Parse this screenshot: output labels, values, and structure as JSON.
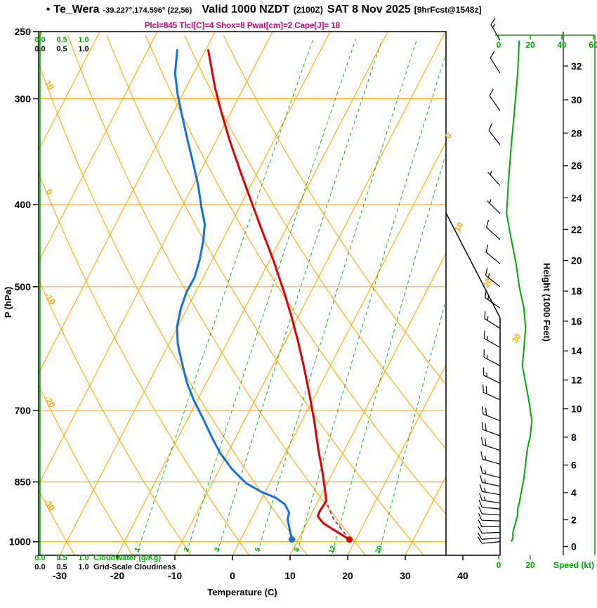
{
  "header": {
    "bullet": "•",
    "station": "Te_Wera",
    "coords": "-39.227°,174.596° (22,56)",
    "valid": "Valid 1000 NZDT",
    "valid_utc": "(2100Z)",
    "date": "SAT 8 Nov 2025",
    "fcst": "[9hrFcst@1548z]",
    "indices": "Plcl=845 Tlcl[C]=4 Shox=8 Pwat[cm]=2 Cape[J]= 18"
  },
  "axes": {
    "pressure_label": "P (hPa)",
    "pressure_ticks": [
      250,
      300,
      400,
      500,
      700,
      850,
      1000
    ],
    "temp_label": "Temperature (C)",
    "temp_ticks": [
      -30,
      -20,
      -10,
      0,
      10,
      20,
      30,
      40
    ],
    "height_label": "Height (1000 Feet)",
    "height_ticks": [
      0,
      2,
      4,
      6,
      8,
      10,
      12,
      14,
      16,
      18,
      20,
      22,
      24,
      26,
      28,
      30,
      32
    ],
    "speed_label": "Speed (kt)",
    "speed_ticks": [
      0,
      20,
      40,
      60
    ],
    "cloud_ticks": [
      "0.0",
      "0.5",
      "1.0"
    ],
    "cloudwater_label": "CloudWater (g/Kg)",
    "cloudiness_label": "Grid-Scale Cloudiness",
    "isotherm_line_labels": [
      0,
      10,
      20,
      30
    ],
    "dry_adiabat_labels": [
      10,
      0,
      -10,
      -20,
      -30
    ],
    "mixratio_values": [
      1,
      2,
      3,
      5,
      8,
      12,
      20
    ]
  },
  "colors": {
    "grid_orange": "#ffa600",
    "green": "#00a900",
    "temperature_red": "#dd0000",
    "dewpoint_blue": "#1470e1",
    "indices_magenta": "#cc0077",
    "parcel_magenta": "#993399",
    "black": "#000000"
  },
  "chart_data": {
    "type": "line",
    "diagram": "skew-t-log-p",
    "pressure_range_hpa": [
      1050,
      250
    ],
    "temp_axis_range_c": [
      -35,
      40
    ],
    "temperature_profile": {
      "pressure_hpa": [
        263,
        291,
        311,
        336,
        366,
        395,
        427,
        465,
        507,
        542,
        579,
        619,
        668,
        721,
        778,
        832,
        873,
        895,
        921,
        933,
        951,
        969,
        994
      ],
      "temp_c": [
        -49.5,
        -45,
        -41.7,
        -37.7,
        -33,
        -28.7,
        -24.3,
        -19.4,
        -14.7,
        -11.2,
        -7.9,
        -4.7,
        -1.2,
        2.2,
        5.4,
        8.4,
        10.4,
        11.4,
        11.2,
        11.3,
        12.9,
        15.4,
        18.9
      ]
    },
    "dewpoint_profile": {
      "pressure_hpa": [
        263,
        280,
        297,
        314,
        336,
        359,
        380,
        403,
        422,
        443,
        465,
        488,
        507,
        531,
        558,
        585,
        613,
        649,
        681,
        714,
        749,
        786,
        821,
        853,
        873,
        887,
        903,
        924,
        942,
        969,
        994
      ],
      "temp_c": [
        -54.9,
        -53.2,
        -50.8,
        -48.2,
        -45,
        -41.8,
        -39.1,
        -36.6,
        -34.5,
        -33.2,
        -32.2,
        -31.5,
        -31.6,
        -31.1,
        -30.1,
        -28.4,
        -26.2,
        -23.4,
        -20.6,
        -17.5,
        -14.5,
        -11.3,
        -7.8,
        -4.1,
        -0.7,
        2.3,
        4.5,
        6,
        6.4,
        7.7,
        8.9
      ]
    },
    "parcel_path": {
      "pressure_hpa": [
        994,
        940,
        893
      ],
      "temp_c": [
        18.9,
        14.3,
        11.2
      ]
    },
    "surface_temperature_marker": {
      "pressure_hpa": 994,
      "temp_c": 18.9
    },
    "surface_dewpoint_marker": {
      "pressure_hpa": 994,
      "temp_c": 8.9
    },
    "cloudwater_profile": {
      "uniform_value_gkg": 0.0
    },
    "wind_profile": [
      {
        "p": 256,
        "dir": 330,
        "spd": 13
      },
      {
        "p": 280,
        "dir": 328,
        "spd": 12
      },
      {
        "p": 310,
        "dir": 325,
        "spd": 10
      },
      {
        "p": 340,
        "dir": 322,
        "spd": 8
      },
      {
        "p": 380,
        "dir": 318,
        "spd": 6
      },
      {
        "p": 410,
        "dir": 315,
        "spd": 5
      },
      {
        "p": 440,
        "dir": 312,
        "spd": 8
      },
      {
        "p": 470,
        "dir": 310,
        "spd": 11
      },
      {
        "p": 500,
        "dir": 308,
        "spd": 13
      },
      {
        "p": 530,
        "dir": 305,
        "spd": 16
      },
      {
        "p": 560,
        "dir": 302,
        "spd": 17
      },
      {
        "p": 590,
        "dir": 300,
        "spd": 16
      },
      {
        "p": 620,
        "dir": 298,
        "spd": 15
      },
      {
        "p": 650,
        "dir": 296,
        "spd": 17
      },
      {
        "p": 680,
        "dir": 294,
        "spd": 19
      },
      {
        "p": 720,
        "dir": 292,
        "spd": 21
      },
      {
        "p": 750,
        "dir": 290,
        "spd": 20
      },
      {
        "p": 780,
        "dir": 288,
        "spd": 18
      },
      {
        "p": 810,
        "dir": 286,
        "spd": 17
      },
      {
        "p": 840,
        "dir": 284,
        "spd": 16
      },
      {
        "p": 860,
        "dir": 282,
        "spd": 15
      },
      {
        "p": 880,
        "dir": 280,
        "spd": 14
      },
      {
        "p": 900,
        "dir": 278,
        "spd": 13
      },
      {
        "p": 915,
        "dir": 276,
        "spd": 12
      },
      {
        "p": 930,
        "dir": 274,
        "spd": 12
      },
      {
        "p": 945,
        "dir": 272,
        "spd": 11
      },
      {
        "p": 960,
        "dir": 270,
        "spd": 10
      },
      {
        "p": 975,
        "dir": 268,
        "spd": 9
      },
      {
        "p": 990,
        "dir": 266,
        "spd": 9
      },
      {
        "p": 1000,
        "dir": 265,
        "spd": 8
      }
    ]
  }
}
